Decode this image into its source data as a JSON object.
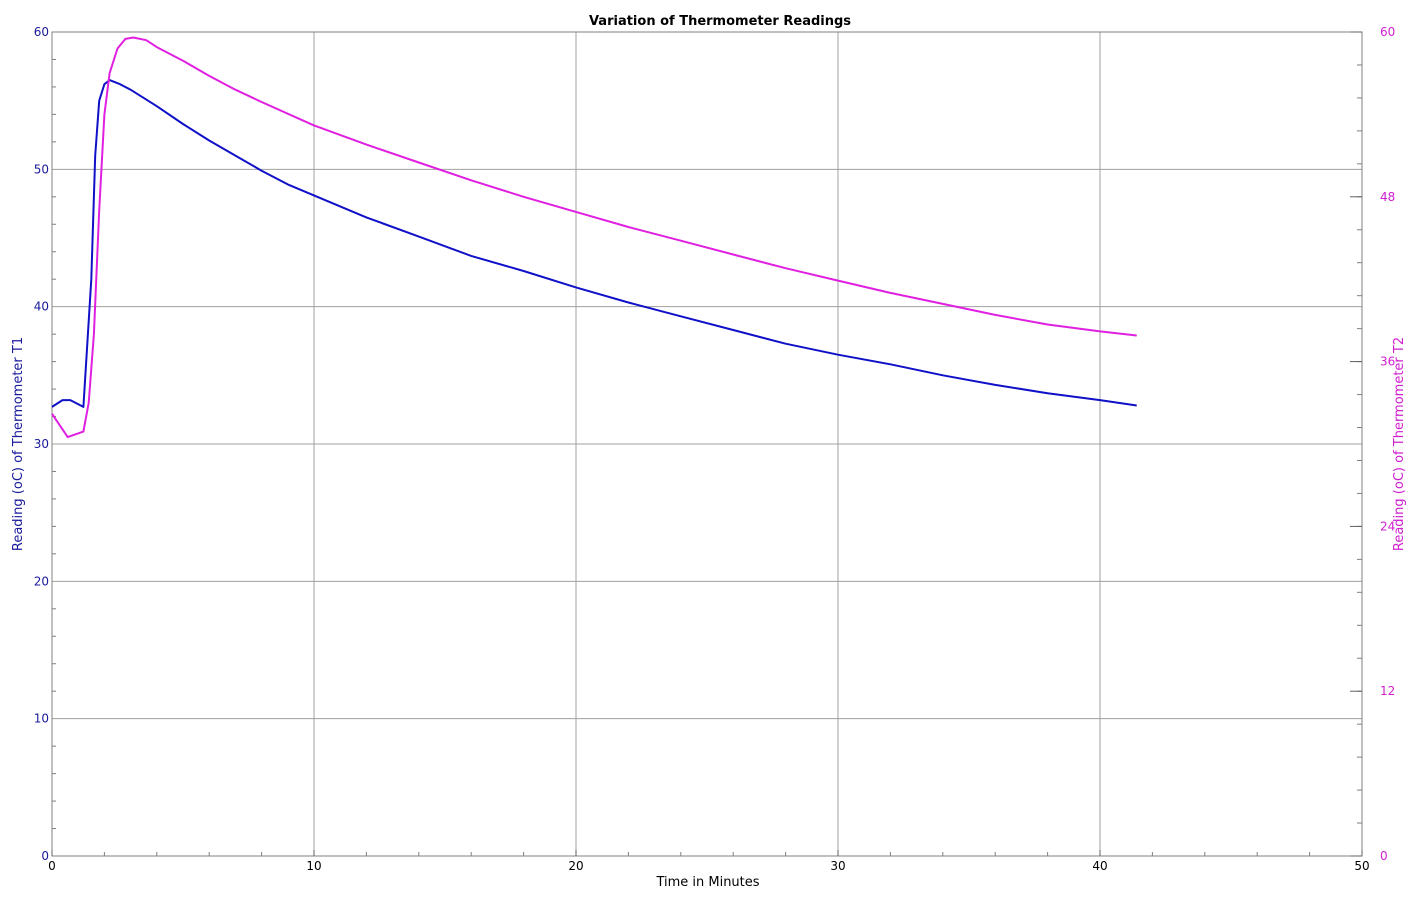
{
  "chart_data": {
    "type": "line",
    "title": "Variation of Thermometer Readings",
    "xlabel": "Time in Minutes",
    "ylabel_left": "Reading (oC) of Thermometer T1",
    "ylabel_right": "Reading (oC) of Thermometer T2",
    "xlim": [
      0,
      50
    ],
    "ylim_left": [
      0,
      60
    ],
    "ylim_right": [
      0,
      60
    ],
    "x_ticks": [
      "0",
      "10",
      "20",
      "30",
      "40",
      "50"
    ],
    "y_ticks_left": [
      "0",
      "10",
      "20",
      "30",
      "40",
      "50",
      "60"
    ],
    "y_ticks_right": [
      "0",
      "12",
      "24",
      "36",
      "48",
      "60"
    ],
    "grid": true,
    "colors": {
      "left_axis": "#1a1a9c",
      "right_axis": "#d020d0",
      "grid": "#a0a0a0"
    },
    "series": [
      {
        "axis": "left",
        "color": "#1010c8",
        "points": [
          [
            0,
            32.7
          ],
          [
            0.4,
            33.2
          ],
          [
            0.7,
            33.2
          ],
          [
            1.2,
            32.7
          ],
          [
            1.5,
            42
          ],
          [
            1.65,
            51
          ],
          [
            1.8,
            55
          ],
          [
            2.0,
            56.2
          ],
          [
            2.2,
            56.5
          ],
          [
            2.6,
            56.2
          ],
          [
            3,
            55.8
          ],
          [
            4,
            54.6
          ],
          [
            5,
            53.3
          ],
          [
            6,
            52.1
          ],
          [
            7,
            51
          ],
          [
            8,
            49.9
          ],
          [
            9,
            48.9
          ],
          [
            10,
            48.1
          ],
          [
            12,
            46.5
          ],
          [
            14,
            45.1
          ],
          [
            16,
            43.7
          ],
          [
            18,
            42.6
          ],
          [
            20,
            41.4
          ],
          [
            22,
            40.3
          ],
          [
            24,
            39.3
          ],
          [
            26,
            38.3
          ],
          [
            28,
            37.3
          ],
          [
            30,
            36.5
          ],
          [
            32,
            35.8
          ],
          [
            34,
            35
          ],
          [
            36,
            34.3
          ],
          [
            38,
            33.7
          ],
          [
            40,
            33.2
          ],
          [
            41.4,
            32.8
          ]
        ]
      },
      {
        "axis": "right",
        "color": "#e020e0",
        "points": [
          [
            0,
            32.2
          ],
          [
            0.6,
            30.5
          ],
          [
            1.2,
            30.9
          ],
          [
            1.4,
            33
          ],
          [
            1.6,
            38
          ],
          [
            1.8,
            47
          ],
          [
            2.0,
            54
          ],
          [
            2.2,
            57
          ],
          [
            2.5,
            58.8
          ],
          [
            2.8,
            59.5
          ],
          [
            3.1,
            59.6
          ],
          [
            3.6,
            59.4
          ],
          [
            4,
            58.9
          ],
          [
            5,
            57.9
          ],
          [
            6,
            56.8
          ],
          [
            7,
            55.8
          ],
          [
            8,
            54.9
          ],
          [
            10,
            53.2
          ],
          [
            12,
            51.8
          ],
          [
            14,
            50.5
          ],
          [
            16,
            49.2
          ],
          [
            18,
            48
          ],
          [
            20,
            46.9
          ],
          [
            22,
            45.8
          ],
          [
            24,
            44.8
          ],
          [
            26,
            43.8
          ],
          [
            28,
            42.8
          ],
          [
            30,
            41.9
          ],
          [
            32,
            41
          ],
          [
            34,
            40.2
          ],
          [
            36,
            39.4
          ],
          [
            38,
            38.7
          ],
          [
            40,
            38.2
          ],
          [
            41.4,
            37.9
          ]
        ]
      }
    ]
  }
}
